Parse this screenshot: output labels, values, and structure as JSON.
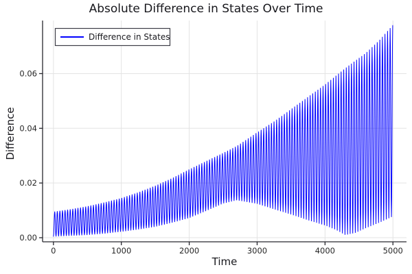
{
  "chart_data": {
    "type": "line",
    "title": "Absolute Difference in States Over Time",
    "xlabel": "Time",
    "ylabel": "Difference",
    "legend": {
      "label": "Difference in States",
      "position": "top-left"
    },
    "line_color": "#0000ff",
    "grid": true,
    "grid_color": "#e3e3e3",
    "axis_color": "#26262d",
    "text_color": "#17171c",
    "tick_label_color": "#262626",
    "x_ticks": [
      0,
      1000,
      2000,
      3000,
      4000,
      5000
    ],
    "x_tick_labels": [
      "0",
      "1000",
      "2000",
      "3000",
      "4000",
      "5000"
    ],
    "y_ticks": [
      0.0,
      0.02,
      0.04,
      0.06
    ],
    "y_tick_labels": [
      "0.00",
      "0.02",
      "0.04",
      "0.06"
    ],
    "xlim": [
      -160,
      5200
    ],
    "ylim": [
      -0.0015,
      0.0794
    ],
    "t_start": 0,
    "t_end": 5000,
    "oscillation_period": 38,
    "series_description": "Absolute difference between two simulated states; fast oscillation bounded by slowly varying envelopes",
    "envelope": {
      "t": [
        0,
        250,
        500,
        750,
        1000,
        1250,
        1500,
        1750,
        2000,
        2250,
        2500,
        2700,
        3000,
        3250,
        3500,
        3750,
        4000,
        4150,
        4300,
        4450,
        4600,
        4800,
        5000
      ],
      "upper": [
        0.0095,
        0.0104,
        0.0115,
        0.0129,
        0.0145,
        0.0166,
        0.019,
        0.0218,
        0.025,
        0.028,
        0.031,
        0.0335,
        0.0385,
        0.0425,
        0.047,
        0.0515,
        0.056,
        0.059,
        0.062,
        0.0648,
        0.0675,
        0.0722,
        0.0778
      ],
      "lower": [
        0.0004,
        0.0007,
        0.001,
        0.0015,
        0.0022,
        0.003,
        0.004,
        0.0055,
        0.0072,
        0.0098,
        0.0125,
        0.0137,
        0.0124,
        0.0104,
        0.0085,
        0.0064,
        0.0045,
        0.003,
        0.001,
        0.0018,
        0.0035,
        0.0055,
        0.0078
      ]
    }
  }
}
